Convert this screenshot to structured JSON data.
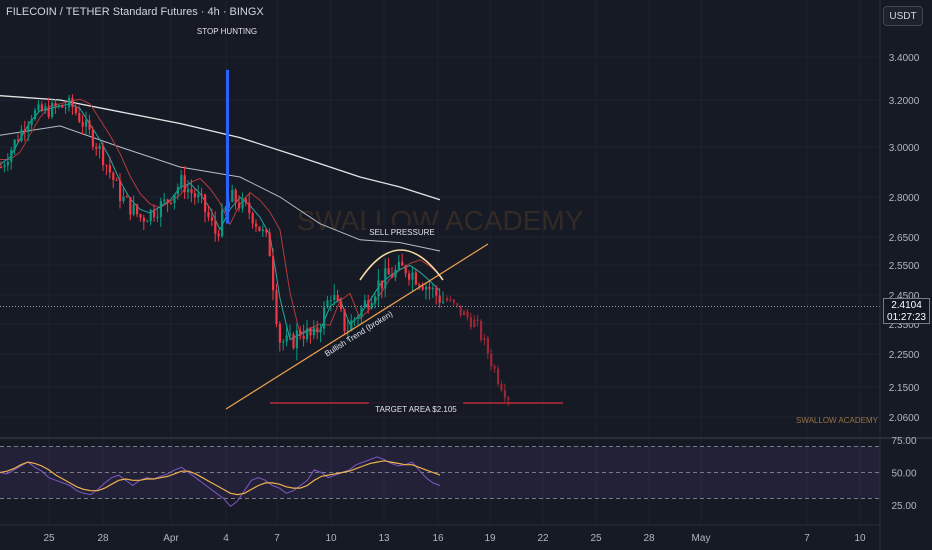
{
  "header": {
    "symbol_title": "FILECOIN / TETHER Standard Futures · 4h · BINGX",
    "currency": "USDT"
  },
  "last_price": {
    "value": "2.4104",
    "countdown": "01:27:23"
  },
  "watermark": {
    "main": "SWALLOW ACADEMY",
    "small": "SWALLOW ACADEMY"
  },
  "colors": {
    "background": "#161a25",
    "up": "#089981",
    "down": "#f23645",
    "projection": "#9b2736",
    "ema_slow": "#e6e6e6",
    "ema_mid": "#b8bcc6",
    "ema_red": "#b23a3a",
    "ema_green": "#26a69a",
    "trendline": "#f0a050",
    "target_line": "#d9303c",
    "rsi_line": "#7e57c2",
    "rsi_ma": "#f0b24a",
    "spike": "#2962ff"
  },
  "chart_data": {
    "type": "candlestick",
    "timeframe": "4h",
    "price_axis": {
      "ticks": [
        "3.4000",
        "3.2000",
        "3.0000",
        "2.8000",
        "2.6500",
        "2.5500",
        "2.4500",
        "2.3500",
        "2.2500",
        "2.1500",
        "2.0600"
      ]
    },
    "time_axis": {
      "ticks": [
        "25",
        "28",
        "Apr",
        "4",
        "7",
        "10",
        "13",
        "16",
        "19",
        "22",
        "25",
        "28",
        "May",
        "7",
        "10"
      ]
    },
    "annotations": {
      "stop_hunting": "STOP HUNTING",
      "sell_pressure": "SELL PRESSURE",
      "bullish_trend": "Bullish Trend (broken)",
      "target_area": "TARGET AREA $2.105"
    },
    "target_price": 2.105,
    "spike_high": 3.46,
    "price_path": [
      [
        0,
        2.92
      ],
      [
        30,
        3.14
      ],
      [
        70,
        3.18
      ],
      [
        100,
        2.98
      ],
      [
        120,
        2.8
      ],
      [
        140,
        2.72
      ],
      [
        165,
        2.78
      ],
      [
        180,
        2.86
      ],
      [
        200,
        2.78
      ],
      [
        215,
        2.66
      ],
      [
        230,
        2.8
      ],
      [
        250,
        2.74
      ],
      [
        268,
        2.62
      ],
      [
        278,
        2.3
      ],
      [
        288,
        2.28
      ],
      [
        300,
        2.33
      ],
      [
        312,
        2.3
      ],
      [
        322,
        2.38
      ],
      [
        330,
        2.46
      ],
      [
        345,
        2.33
      ],
      [
        360,
        2.4
      ],
      [
        375,
        2.48
      ],
      [
        390,
        2.52
      ],
      [
        405,
        2.54
      ],
      [
        420,
        2.5
      ],
      [
        432,
        2.46
      ],
      [
        442,
        2.43
      ]
    ],
    "projection_path": [
      [
        446,
        2.44
      ],
      [
        460,
        2.4
      ],
      [
        475,
        2.36
      ],
      [
        485,
        2.28
      ],
      [
        495,
        2.2
      ],
      [
        510,
        2.12
      ]
    ],
    "ema_slow": [
      [
        0,
        3.22
      ],
      [
        60,
        3.2
      ],
      [
        120,
        3.15
      ],
      [
        180,
        3.1
      ],
      [
        240,
        3.04
      ],
      [
        300,
        2.96
      ],
      [
        360,
        2.88
      ],
      [
        400,
        2.84
      ],
      [
        440,
        2.79
      ]
    ],
    "ema_mid": [
      [
        0,
        3.05
      ],
      [
        60,
        3.09
      ],
      [
        120,
        3.0
      ],
      [
        180,
        2.92
      ],
      [
        240,
        2.88
      ],
      [
        280,
        2.8
      ],
      [
        320,
        2.7
      ],
      [
        360,
        2.64
      ],
      [
        400,
        2.63
      ],
      [
        440,
        2.6
      ]
    ],
    "rsi": {
      "levels": [
        70,
        50,
        30
      ],
      "ticks": [
        "75.00",
        "50.00",
        "25.00"
      ],
      "values": [
        50,
        49,
        52,
        55,
        58,
        54,
        51,
        46,
        44,
        42,
        40,
        36,
        34,
        33,
        37,
        42,
        46,
        48,
        44,
        40,
        44,
        46,
        45,
        47,
        49,
        52,
        54,
        50,
        46,
        42,
        38,
        34,
        30,
        24,
        28,
        36,
        44,
        46,
        44,
        40,
        38,
        34,
        36,
        40,
        44,
        52,
        50,
        46,
        48,
        50,
        52,
        56,
        58,
        60,
        62,
        60,
        57,
        55,
        56,
        58,
        52,
        46,
        42,
        40
      ],
      "ma_values": [
        50,
        51,
        53,
        56,
        58,
        57,
        55,
        52,
        48,
        45,
        42,
        39,
        37,
        36,
        36,
        38,
        41,
        44,
        45,
        44,
        44,
        45,
        45,
        46,
        47,
        49,
        51,
        51,
        49,
        46,
        43,
        40,
        37,
        34,
        33,
        34,
        37,
        40,
        42,
        42,
        41,
        39,
        38,
        38,
        40,
        44,
        47,
        48,
        49,
        50,
        51,
        53,
        55,
        57,
        58,
        59,
        58,
        57,
        56,
        56,
        54,
        52,
        50,
        48
      ]
    }
  }
}
